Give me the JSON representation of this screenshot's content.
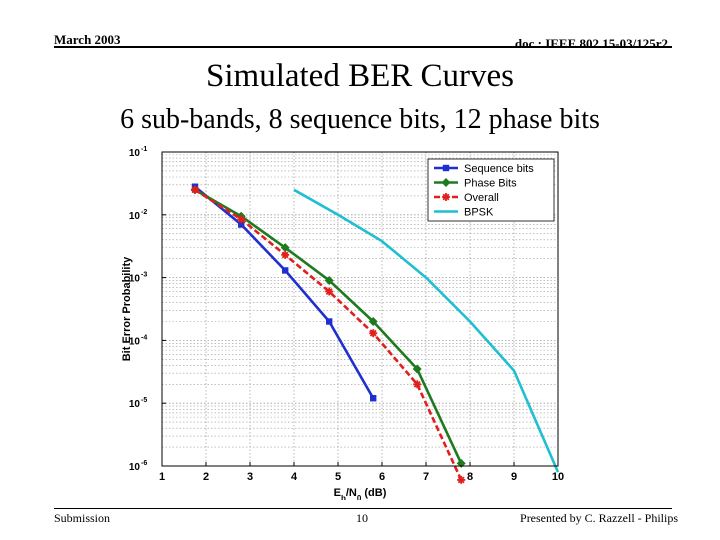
{
  "header": {
    "date": "March 2003",
    "doc_id": "doc.: IEEE 802.15-03/125r2"
  },
  "slide": {
    "title": "Simulated BER Curves",
    "subtitle": "6 sub-bands, 8 sequence bits, 12 phase bits"
  },
  "footer": {
    "left": "Submission",
    "page": "10",
    "right": "Presented by C. Razzell - Philips"
  },
  "chart_data": {
    "type": "line",
    "xlabel": "E_b/N_0 (dB)",
    "ylabel": "Bit Error Probability",
    "xlim": [
      1,
      10
    ],
    "ylim": [
      1e-06,
      0.1
    ],
    "yscale": "log",
    "x_ticks": [
      "1",
      "2",
      "3",
      "4",
      "5",
      "6",
      "7",
      "8",
      "9",
      "10"
    ],
    "y_ticks": [
      {
        "value": 0.1,
        "exp": "-1"
      },
      {
        "value": 0.01,
        "exp": "-2"
      },
      {
        "value": 0.001,
        "exp": "-3"
      },
      {
        "value": 0.0001,
        "exp": "-4"
      },
      {
        "value": 1e-05,
        "exp": "-5"
      },
      {
        "value": 1e-06,
        "exp": "-6"
      }
    ],
    "grid": true,
    "legend_position": "top-right",
    "series": [
      {
        "name": "Sequence bits",
        "color": "#1f2fd0",
        "dash": "solid",
        "marker": "square",
        "x": [
          1.75,
          2.8,
          3.8,
          4.8,
          5.8
        ],
        "y": [
          0.028,
          0.007,
          0.0013,
          0.0002,
          1.2e-05
        ]
      },
      {
        "name": "Phase Bits",
        "color": "#1e7a1e",
        "dash": "solid",
        "marker": "diamond",
        "x": [
          1.75,
          2.8,
          3.8,
          4.8,
          5.8,
          6.8,
          7.8
        ],
        "y": [
          0.025,
          0.0095,
          0.003,
          0.0009,
          0.0002,
          3.5e-05,
          1.1e-06
        ]
      },
      {
        "name": "Overall",
        "color": "#e0201c",
        "dash": "dashed",
        "marker": "star",
        "x": [
          1.75,
          2.8,
          3.8,
          4.8,
          5.8,
          6.8,
          7.8
        ],
        "y": [
          0.025,
          0.0085,
          0.0023,
          0.0006,
          0.00013,
          2e-05,
          6e-07
        ]
      },
      {
        "name": "BPSK",
        "color": "#1ebfd0",
        "dash": "solid",
        "marker": "none",
        "x": [
          4,
          5,
          6,
          7,
          8,
          9,
          10
        ],
        "y": [
          0.025,
          0.01,
          0.0038,
          0.001,
          0.0002,
          3.3e-05,
          8e-07
        ]
      }
    ]
  }
}
